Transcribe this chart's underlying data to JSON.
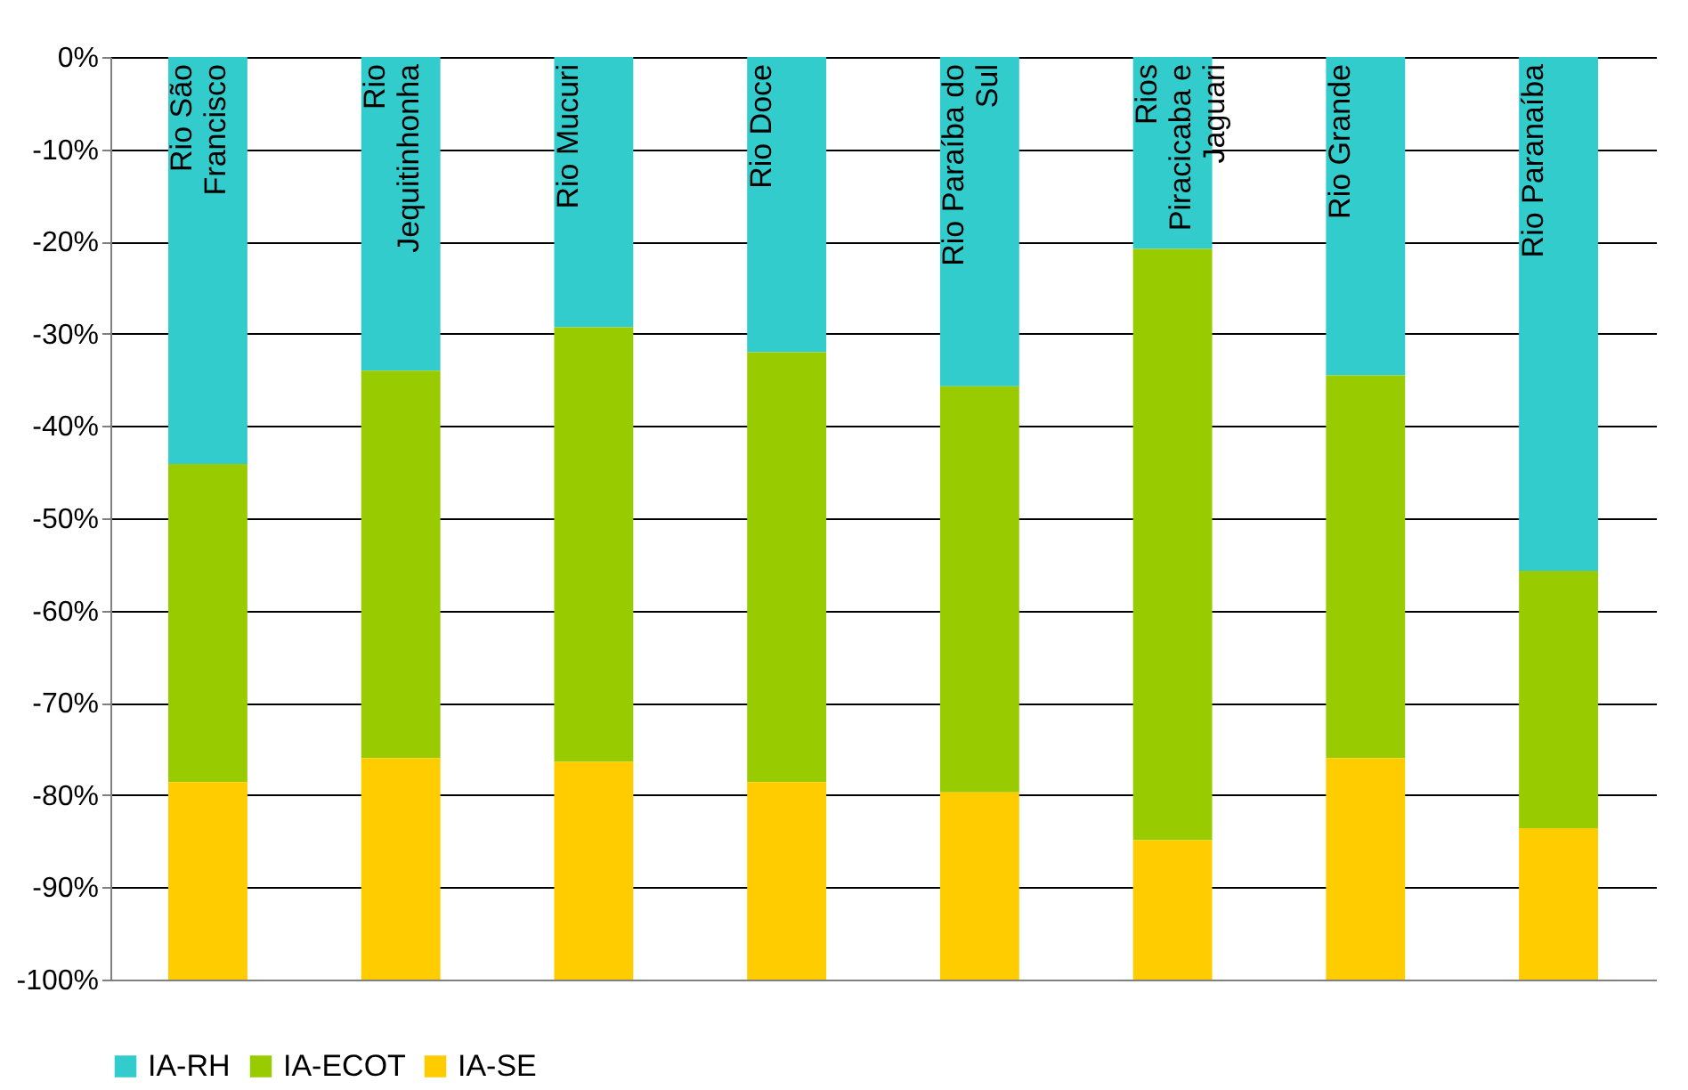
{
  "chart_data": {
    "type": "bar",
    "stacked": true,
    "categories": [
      "Rio São Francisco",
      "Rio Jequitinhonha",
      "Rio Mucuri",
      "Rio Doce",
      "Rio Paraíba do Sul",
      "Rios Piracicaba e Jaguari",
      "Rio Grande",
      "Rio Paranaíba"
    ],
    "series": [
      {
        "name": "IA-RH",
        "color": "#33cccc",
        "values": [
          -44.1,
          -34.0,
          -29.3,
          -32.0,
          -35.7,
          -20.8,
          -34.5,
          -55.7
        ]
      },
      {
        "name": "IA-ECOT",
        "color": "#99cc00",
        "values": [
          -34.5,
          -42.0,
          -47.1,
          -46.6,
          -44.0,
          -64.1,
          -41.5,
          -27.9
        ]
      },
      {
        "name": "IA-SE",
        "color": "#ffcc00",
        "values": [
          -21.4,
          -24.0,
          -23.6,
          -21.4,
          -20.3,
          -15.1,
          -24.0,
          -16.4
        ]
      }
    ],
    "ylim": [
      -100,
      0
    ],
    "yticks": [
      {
        "value": -100,
        "label": "-100%"
      },
      {
        "value": -90,
        "label": "-90%"
      },
      {
        "value": -80,
        "label": "-80%"
      },
      {
        "value": -70,
        "label": "-70%"
      },
      {
        "value": -60,
        "label": "-60%"
      },
      {
        "value": -50,
        "label": "-50%"
      },
      {
        "value": -40,
        "label": "-40%"
      },
      {
        "value": -30,
        "label": "-30%"
      },
      {
        "value": -20,
        "label": "-20%"
      },
      {
        "value": -10,
        "label": "-10%"
      },
      {
        "value": 0,
        "label": "0%"
      }
    ],
    "grid": "y",
    "legend": "bottom",
    "tick_labels": "y"
  }
}
